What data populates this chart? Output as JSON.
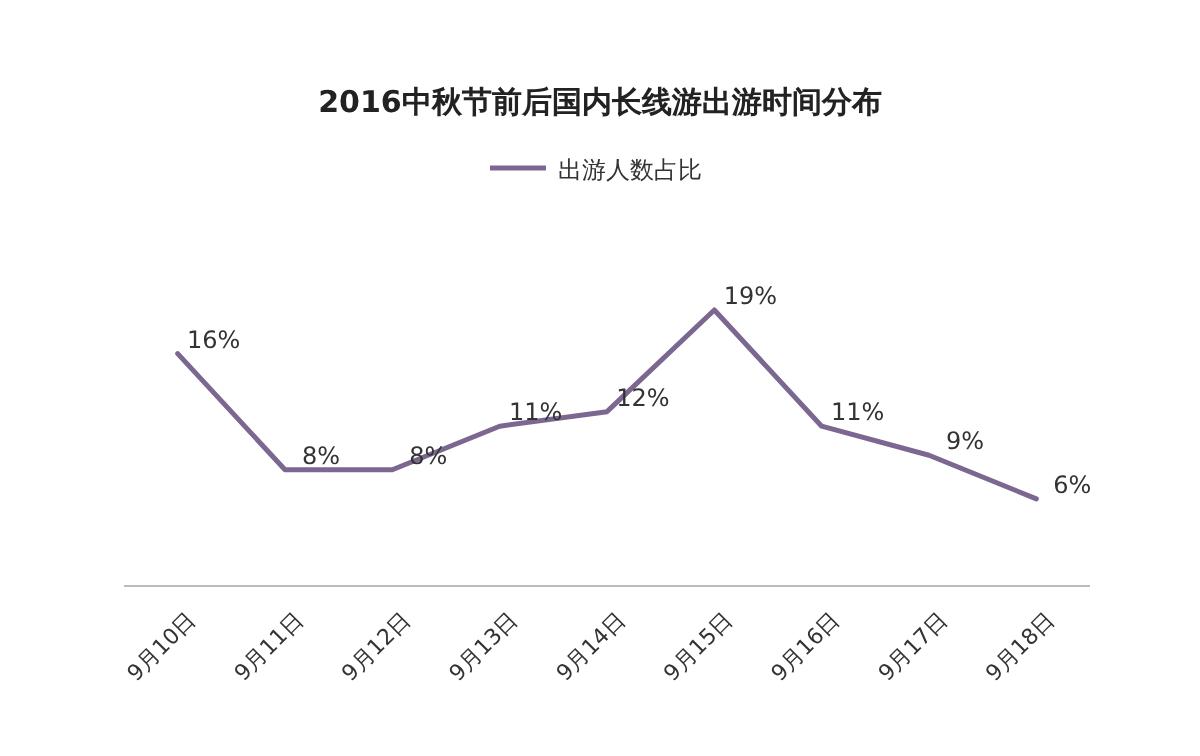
{
  "chart_data": {
    "type": "line",
    "title": "2016中秋节前后国内长线游出游时间分布",
    "categories": [
      "9月10日",
      "9月11日",
      "9月12日",
      "9月13日",
      "9月14日",
      "9月15日",
      "9月16日",
      "9月17日",
      "9月18日"
    ],
    "series": [
      {
        "name": "出游人数占比",
        "color": "#7b6790",
        "values": [
          16,
          8,
          8,
          11,
          12,
          19,
          11,
          9,
          6
        ],
        "value_labels": [
          "16%",
          "8%",
          "8%",
          "11%",
          "12%",
          "19%",
          "11%",
          "9%",
          "6%"
        ]
      }
    ],
    "legend": "top"
  }
}
